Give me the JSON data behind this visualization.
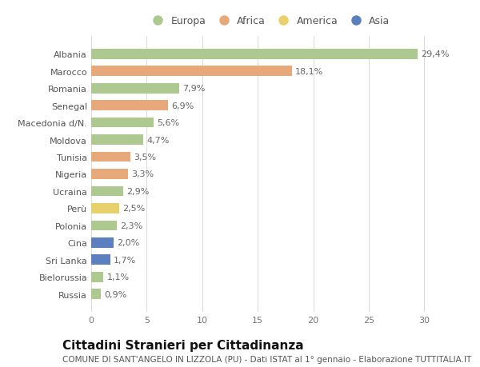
{
  "countries": [
    "Albania",
    "Marocco",
    "Romania",
    "Senegal",
    "Macedonia d/N.",
    "Moldova",
    "Tunisia",
    "Nigeria",
    "Ucraina",
    "Perù",
    "Polonia",
    "Cina",
    "Sri Lanka",
    "Bielorussia",
    "Russia"
  ],
  "values": [
    29.4,
    18.1,
    7.9,
    6.9,
    5.6,
    4.7,
    3.5,
    3.3,
    2.9,
    2.5,
    2.3,
    2.0,
    1.7,
    1.1,
    0.9
  ],
  "labels": [
    "29,4%",
    "18,1%",
    "7,9%",
    "6,9%",
    "5,6%",
    "4,7%",
    "3,5%",
    "3,3%",
    "2,9%",
    "2,5%",
    "2,3%",
    "2,0%",
    "1,7%",
    "1,1%",
    "0,9%"
  ],
  "continents": [
    "Europa",
    "Africa",
    "Europa",
    "Africa",
    "Europa",
    "Europa",
    "Africa",
    "Africa",
    "Europa",
    "America",
    "Europa",
    "Asia",
    "Asia",
    "Europa",
    "Europa"
  ],
  "colors": {
    "Europa": "#adc990",
    "Africa": "#e8a97a",
    "America": "#e8d06a",
    "Asia": "#5b7fbf"
  },
  "legend_order": [
    "Europa",
    "Africa",
    "America",
    "Asia"
  ],
  "title": "Cittadini Stranieri per Cittadinanza",
  "subtitle": "COMUNE DI SANT'ANGELO IN LIZZOLA (PU) - Dati ISTAT al 1° gennaio - Elaborazione TUTTITALIA.IT",
  "xlim": [
    0,
    32
  ],
  "xticks": [
    0,
    5,
    10,
    15,
    20,
    25,
    30
  ],
  "bg_color": "#ffffff",
  "grid_color": "#dddddd",
  "bar_height": 0.6,
  "label_fontsize": 8.0,
  "tick_fontsize": 8.0,
  "legend_fontsize": 9.0,
  "title_fontsize": 11,
  "subtitle_fontsize": 7.5
}
